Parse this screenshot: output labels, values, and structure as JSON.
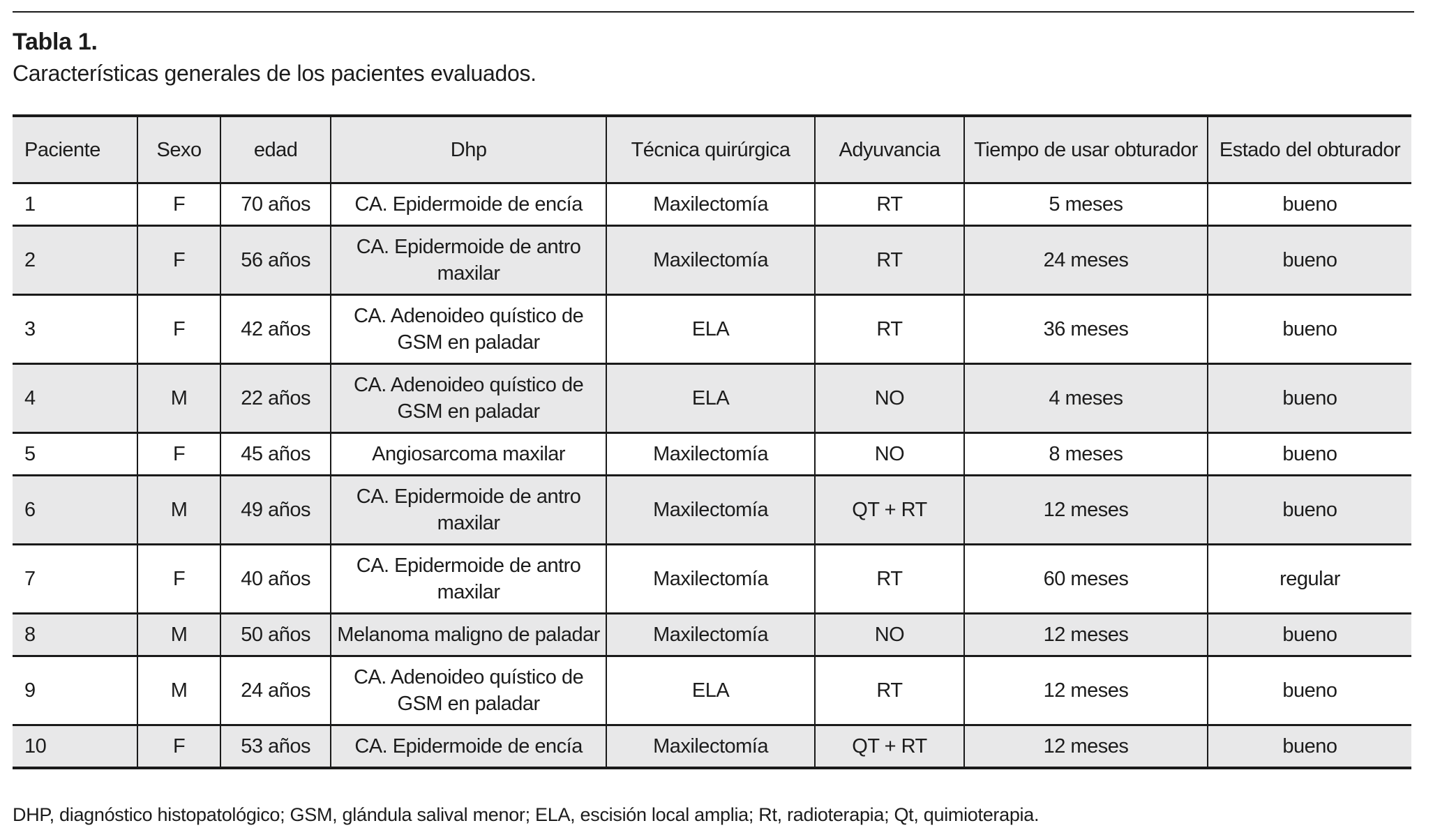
{
  "header": {
    "title": "Tabla 1.",
    "caption": "Características generales de los pacientes evaluados."
  },
  "table": {
    "columns": [
      "Paciente",
      "Sexo",
      "edad",
      "Dhp",
      "Técnica quirúrgica",
      "Adyuvancia",
      "Tiempo de usar obturador",
      "Estado del obturador"
    ],
    "rows": [
      [
        "1",
        "F",
        "70 años",
        "CA. Epidermoide de encía",
        "Maxilectomía",
        "RT",
        "5 meses",
        "bueno"
      ],
      [
        "2",
        "F",
        "56 años",
        "CA. Epidermoide de antro maxilar",
        "Maxilectomía",
        "RT",
        "24 meses",
        "bueno"
      ],
      [
        "3",
        "F",
        "42 años",
        "CA. Adenoideo quístico de GSM en paladar",
        "ELA",
        "RT",
        "36 meses",
        "bueno"
      ],
      [
        "4",
        "M",
        "22 años",
        "CA. Adenoideo quístico de GSM en paladar",
        "ELA",
        "NO",
        "4 meses",
        "bueno"
      ],
      [
        "5",
        "F",
        "45 años",
        "Angiosarcoma maxilar",
        "Maxilectomía",
        "NO",
        "8 meses",
        "bueno"
      ],
      [
        "6",
        "M",
        "49 años",
        "CA. Epidermoide de antro maxilar",
        "Maxilectomía",
        "QT + RT",
        "12 meses",
        "bueno"
      ],
      [
        "7",
        "F",
        "40 años",
        "CA. Epidermoide de antro maxilar",
        "Maxilectomía",
        "RT",
        "60 meses",
        "regular"
      ],
      [
        "8",
        "M",
        "50 años",
        "Melanoma maligno de paladar",
        "Maxilectomía",
        "NO",
        "12 meses",
        "bueno"
      ],
      [
        "9",
        "M",
        "24 años",
        "CA. Adenoideo quístico de GSM en paladar",
        "ELA",
        "RT",
        "12 meses",
        "bueno"
      ],
      [
        "10",
        "F",
        "53 años",
        "CA. Epidermoide de encía",
        "Maxilectomía",
        "QT + RT",
        "12 meses",
        "bueno"
      ]
    ]
  },
  "footnote": {
    "text": "DHP, diagnóstico histopatológico; GSM, glándula salival menor; ELA, escisión local amplia; Rt, radioterapia; Qt, quimioterapia."
  },
  "colors": {
    "row_shade": "#e8e8e9",
    "border": "#1a1a1a",
    "text": "#1c1c1c"
  }
}
